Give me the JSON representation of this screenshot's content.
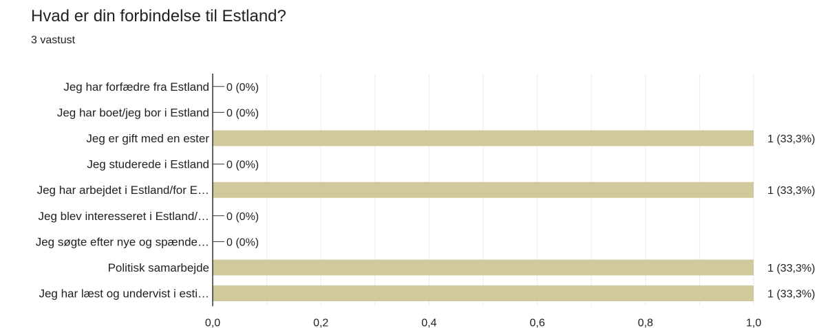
{
  "question": {
    "title": "Hvad er din forbindelse til Estland?",
    "response_count": "3 vastust"
  },
  "chart_data": {
    "type": "bar",
    "orientation": "horizontal",
    "categories": [
      "Jeg har forfædre fra Estland",
      "Jeg har boet/jeg bor i Estland",
      "Jeg er gift med en ester",
      "Jeg studerede i Estland",
      "Jeg har arbejdet i Estland/for E…",
      "Jeg blev interesseret i Estland/…",
      "Jeg søgte efter nye og spænde…",
      "Politisk samarbejde",
      "Jeg har læst og undervist i esti…"
    ],
    "values": [
      0,
      0,
      1,
      0,
      1,
      0,
      0,
      1,
      1
    ],
    "value_labels": [
      "0 (0%)",
      "0 (0%)",
      "1 (33,3%)",
      "0 (0%)",
      "1 (33,3%)",
      "0 (0%)",
      "0 (0%)",
      "1 (33,3%)",
      "1 (33,3%)"
    ],
    "xlim": [
      0,
      1
    ],
    "xticks": [
      0,
      0.2,
      0.4,
      0.6,
      0.8,
      1.0
    ],
    "xtick_labels": [
      "0,0",
      "0,2",
      "0,4",
      "0,6",
      "0,8",
      "1,0"
    ],
    "grid": true,
    "bar_color": "#d1c99b"
  }
}
